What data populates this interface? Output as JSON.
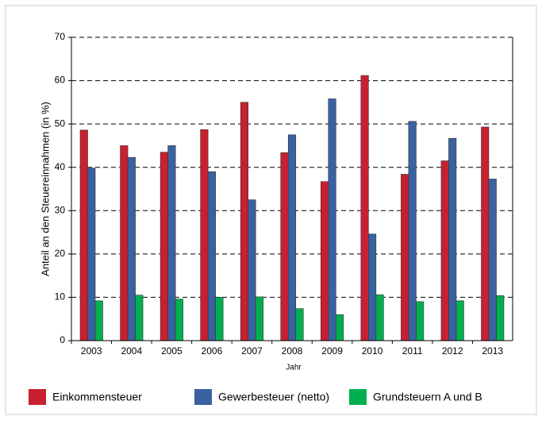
{
  "chart_data": {
    "type": "bar",
    "xlabel": "Jahr",
    "ylabel": "Anteil an den Steuereinnahmen (in %)",
    "categories": [
      "2003",
      "2004",
      "2005",
      "2006",
      "2007",
      "2008",
      "2009",
      "2010",
      "2011",
      "2012",
      "2013"
    ],
    "series": [
      {
        "name": "Einkommensteuer",
        "color": "#c8202f",
        "values": [
          48.6,
          45.0,
          43.5,
          48.7,
          55.0,
          43.4,
          36.7,
          61.2,
          38.4,
          41.5,
          49.3
        ]
      },
      {
        "name": "Gewerbesteuer (netto)",
        "color": "#3a62a0",
        "values": [
          39.8,
          42.3,
          45.0,
          39.0,
          32.5,
          47.5,
          55.8,
          24.6,
          50.6,
          46.7,
          37.3
        ]
      },
      {
        "name": "Grundsteuern A und B",
        "color": "#00b050",
        "values": [
          9.2,
          10.5,
          9.6,
          10.0,
          10.1,
          7.4,
          6.0,
          10.6,
          9.0,
          9.2,
          10.4
        ]
      }
    ],
    "ylim": [
      0,
      70
    ],
    "yticks": [
      0,
      10,
      20,
      30,
      40,
      50,
      60,
      70
    ],
    "grid": true
  }
}
